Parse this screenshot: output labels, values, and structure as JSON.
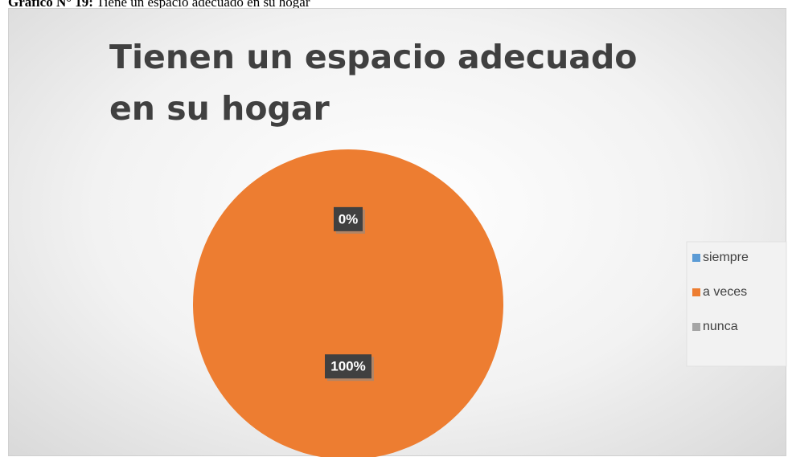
{
  "caption": {
    "label": "Gráfico N° 19:",
    "text": "Tiene un espacio adecuado en su hogar"
  },
  "chart_data": {
    "type": "pie",
    "title": "Tienen un espacio adecuado en su hogar",
    "categories": [
      "siempre",
      "a veces",
      "nunca"
    ],
    "values": [
      0,
      100,
      0
    ],
    "value_labels": [
      "0%",
      "100%",
      "0%"
    ],
    "colors": [
      "#5b9bd5",
      "#ed7d31",
      "#a5a5a5"
    ],
    "legend": "right"
  }
}
